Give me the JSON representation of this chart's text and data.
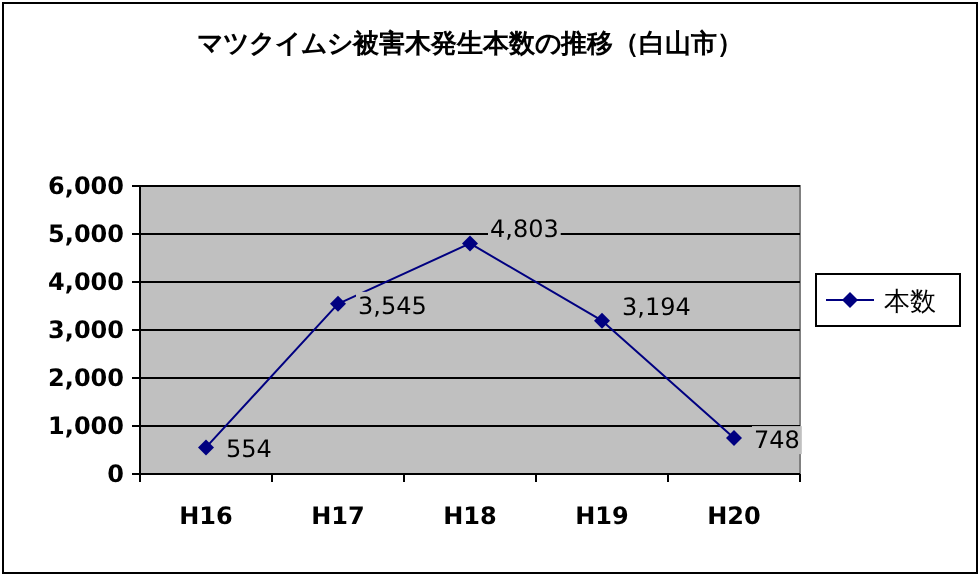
{
  "chart_data": {
    "type": "line",
    "title": "マツクイムシ被害木発生本数の推移（白山市）",
    "categories": [
      "H16",
      "H17",
      "H18",
      "H19",
      "H20"
    ],
    "series": [
      {
        "name": "本数",
        "color": "#000080",
        "values": [
          554,
          3545,
          4803,
          3194,
          748
        ],
        "value_labels": [
          "554",
          "3,545",
          "4,803",
          "3,194",
          "748"
        ]
      }
    ],
    "ylim": [
      0,
      6000
    ],
    "yticks": [
      {
        "value": 0,
        "label": "0"
      },
      {
        "value": 1000,
        "label": "1,000"
      },
      {
        "value": 2000,
        "label": "2,000"
      },
      {
        "value": 3000,
        "label": "3,000"
      },
      {
        "value": 4000,
        "label": "4,000"
      },
      {
        "value": 5000,
        "label": "5,000"
      },
      {
        "value": 6000,
        "label": "6,000"
      }
    ],
    "grid": "y",
    "legend": "right",
    "marker": "diamond",
    "line_style": "solid"
  }
}
